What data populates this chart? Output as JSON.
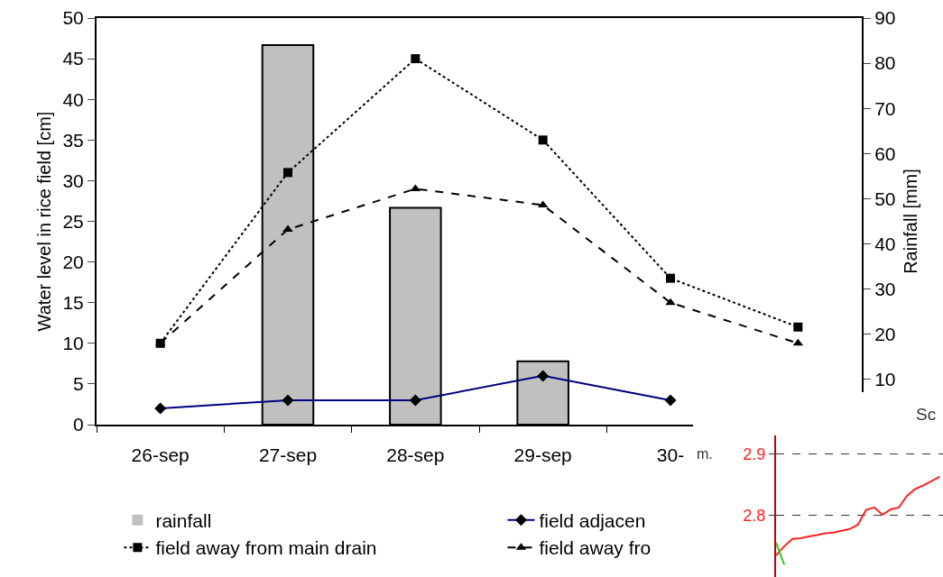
{
  "chart_data": [
    {
      "type": "bar",
      "categories": [
        "26-sep",
        "27-sep",
        "28-sep",
        "29-sep",
        "30-",
        null
      ],
      "ylabel": "Water level in rice field [cm]",
      "y2label": "Rainfall [mm]",
      "ylim": [
        0,
        50
      ],
      "yticks": [
        0,
        5,
        10,
        15,
        20,
        25,
        30,
        35,
        40,
        45,
        50
      ],
      "y2lim": [
        0,
        90
      ],
      "y2ticks": [
        10,
        20,
        30,
        40,
        50,
        60,
        70,
        80,
        90
      ],
      "legend": "bottom",
      "series": [
        {
          "name": "rainfall",
          "axis": "y2",
          "color": "#c0c0c0",
          "values": [
            0,
            84,
            48,
            14,
            0,
            null
          ]
        },
        {
          "name": "field adjacen",
          "type": "line",
          "color": "#000080",
          "marker": "diamond",
          "line_style": "solid",
          "values": [
            2,
            3,
            3,
            6,
            3,
            null
          ]
        },
        {
          "name": "field away from main drain",
          "type": "line",
          "color": "#000000",
          "marker": "square",
          "line_style": "dotted",
          "values": [
            10,
            31,
            45,
            35,
            18,
            12
          ]
        },
        {
          "name": "field away fro",
          "type": "line",
          "color": "#000000",
          "marker": "triangle",
          "line_style": "dashed",
          "values": [
            10,
            24,
            29,
            27,
            15,
            10
          ]
        }
      ]
    },
    {
      "type": "line",
      "title": "Sc",
      "ylabel": "m.",
      "categories": [
        null,
        null,
        null,
        null,
        null,
        null,
        null,
        null,
        null,
        null,
        null,
        null,
        null,
        null,
        null,
        null,
        null,
        null,
        null,
        null,
        null
      ],
      "ylim": [
        2.7,
        2.93
      ],
      "yticks": [
        2.8,
        2.9
      ],
      "grid": "y",
      "tick_labels": "y",
      "series": [
        {
          "color": "#ff2020",
          "values": [
            2.735,
            2.75,
            2.762,
            2.763,
            2.766,
            2.768,
            2.771,
            2.772,
            2.775,
            2.778,
            2.785,
            2.809,
            2.813,
            2.801,
            2.81,
            2.813,
            2.832,
            2.843,
            2.849,
            2.856,
            2.863
          ]
        },
        {
          "type": "line",
          "color": "#20d020",
          "values": [
            2.756,
            2.72,
            null,
            null,
            null,
            null,
            null,
            null,
            null,
            null,
            null,
            null,
            null,
            null,
            null,
            null,
            null,
            null,
            null,
            null,
            null
          ]
        }
      ]
    }
  ]
}
